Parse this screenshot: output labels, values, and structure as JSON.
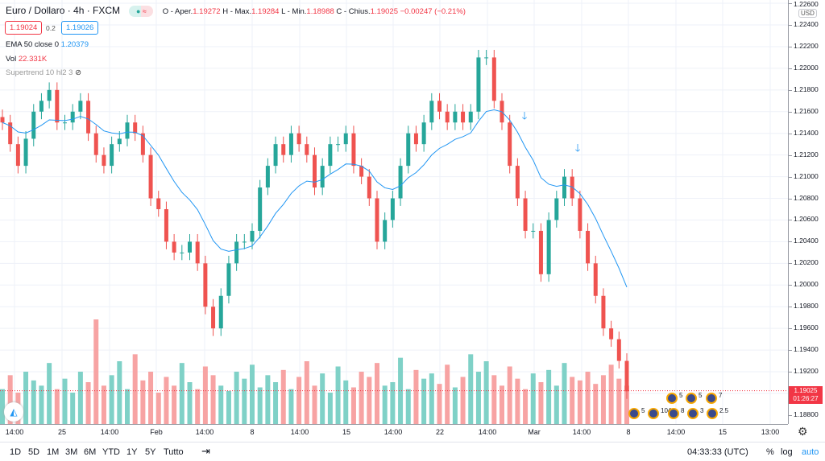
{
  "header": {
    "symbol": "Euro / Dollaro · 4h · FXCM",
    "o_label": "O - Aper.",
    "o": "1.19272",
    "h_label": "H - Max.",
    "h": "1.19284",
    "l_label": "L - Min.",
    "l": "1.18988",
    "c_label": "C - Chius.",
    "c": "1.19025",
    "change": "−0.00247 (−0.21%)"
  },
  "sell_price": "1.19024",
  "spread": "0.2",
  "buy_price": "1.19026",
  "indicators": {
    "ema_label": "EMA 50 close 0",
    "ema_value": "1.20379",
    "vol_label": "Vol",
    "vol_value": "22.331K",
    "supertrend_label": "Supertrend 10 hl2 3"
  },
  "colors": {
    "up": "#26a69a",
    "down": "#ef5350",
    "ema": "#2196f3",
    "vol_up": "#7fd1c7",
    "vol_down": "#f7a3a3"
  },
  "price_axis": {
    "currency": "USD",
    "labels": [
      "1.22600",
      "1.22400",
      "1.22200",
      "1.22000",
      "1.21800",
      "1.21600",
      "1.21400",
      "1.21200",
      "1.21000",
      "1.20800",
      "1.20600",
      "1.20400",
      "1.20200",
      "1.20000",
      "1.19800",
      "1.19600",
      "1.19400",
      "1.19200",
      "1.18800"
    ],
    "last_price": "1.19025",
    "countdown": "01:26:27"
  },
  "time_axis": [
    "14:00",
    "25",
    "14:00",
    "Feb",
    "14:00",
    "8",
    "14:00",
    "15",
    "14:00",
    "22",
    "14:00",
    "Mar",
    "14:00",
    "8",
    "14:00",
    "15",
    "13:00"
  ],
  "events": [
    "5",
    "5",
    "7",
    "5",
    "104",
    "8",
    "3",
    "2.5"
  ],
  "bottom": {
    "ranges": [
      "1D",
      "5D",
      "1M",
      "3M",
      "6M",
      "YTD",
      "1Y",
      "5Y",
      "Tutto"
    ],
    "clock": "04:33:33 (UTC)",
    "percent": "%",
    "log": "log",
    "auto": "auto"
  },
  "chart_data": {
    "type": "candlestick",
    "ylim": [
      1.188,
      1.2266
    ],
    "closes": [
      1.215,
      1.213,
      1.211,
      1.2135,
      1.216,
      1.217,
      1.218,
      1.215,
      1.215,
      1.216,
      1.217,
      1.214,
      1.212,
      1.211,
      1.213,
      1.2135,
      1.215,
      1.214,
      1.212,
      1.208,
      1.207,
      1.204,
      1.203,
      1.203,
      1.204,
      1.202,
      1.198,
      1.196,
      1.199,
      1.202,
      1.204,
      1.204,
      1.205,
      1.209,
      1.211,
      1.213,
      1.212,
      1.214,
      1.213,
      1.212,
      1.209,
      1.211,
      1.213,
      1.213,
      1.214,
      1.211,
      1.21,
      1.208,
      1.204,
      1.206,
      1.208,
      1.211,
      1.214,
      1.213,
      1.215,
      1.217,
      1.216,
      1.215,
      1.216,
      1.215,
      1.216,
      1.221,
      1.221,
      1.217,
      1.215,
      1.211,
      1.208,
      1.205,
      1.205,
      1.201,
      1.206,
      1.208,
      1.21,
      1.208,
      1.205,
      1.202,
      1.199,
      1.196,
      1.195,
      1.193,
      1.1902
    ],
    "volumes_k": [
      20,
      28,
      18,
      30,
      25,
      22,
      35,
      20,
      26,
      18,
      30,
      24,
      60,
      22,
      28,
      36,
      20,
      40,
      25,
      30,
      18,
      27,
      22,
      35,
      24,
      20,
      33,
      28,
      22,
      19,
      30,
      26,
      34,
      21,
      28,
      24,
      31,
      20,
      27,
      36,
      22,
      29,
      18,
      33,
      25,
      21,
      30,
      27,
      35,
      22,
      24,
      38,
      20,
      31,
      26,
      29,
      23,
      34,
      21,
      27,
      40,
      30,
      36,
      28,
      22,
      33,
      26,
      20,
      29,
      24,
      31,
      22,
      35,
      27,
      25,
      30,
      23,
      28,
      34,
      26,
      22
    ]
  }
}
